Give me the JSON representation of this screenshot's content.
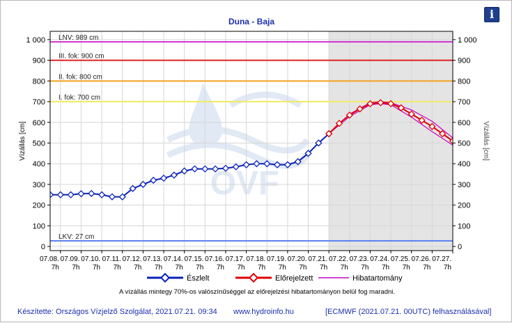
{
  "header": {
    "title": "Duna - Baja"
  },
  "info_icon": {
    "name": "info-icon",
    "glyph": "i"
  },
  "footer": {
    "note": "A vízállás mintegy 70%-os valószínűséggel az előrejelzési hibatartományon belül fog maradni.",
    "author": "Készítette: Országos Vízjelző Szolgálat, 2021.07.21. 09:34",
    "url": "www.hydroinfo.hu",
    "model": "[ECMWF (2021.07.21. 00UTC) felhasználásával]"
  },
  "watermark": "OVF",
  "colors": {
    "observed": "#0a22b8",
    "forecast": "#e00000",
    "band": "#c800c8",
    "forecast_bg": "#e4e4e4",
    "lnv": "#d030d0",
    "level3": "#e02020",
    "level2": "#f4a020",
    "level1": "#f4ea60",
    "lkv": "#5f80f0",
    "footer_text": "#1a2fb0"
  },
  "chart_data": {
    "type": "line",
    "title": "Duna - Baja",
    "ylabel": "Vízállás [cm]",
    "ylabel_right": "Vízállás [cm]",
    "ylim": [
      -20,
      1040
    ],
    "yticks": [
      0,
      100,
      200,
      300,
      400,
      500,
      600,
      700,
      800,
      900,
      1000
    ],
    "ytick_labels": [
      "0",
      "100",
      "200",
      "300",
      "400",
      "500",
      "600",
      "700",
      "800",
      "900",
      "1 000"
    ],
    "x_unit": "days",
    "x_range": [
      "07.07. 19h",
      "07.27. 7h"
    ],
    "x_ticks": [
      "07.08. 7h",
      "07.09. 7h",
      "07.10. 7h",
      "07.11. 7h",
      "07.12. 7h",
      "07.13. 7h",
      "07.14. 7h",
      "07.15. 7h",
      "07.16. 7h",
      "07.17. 7h",
      "07.18. 7h",
      "07.19. 7h",
      "07.20. 7h",
      "07.21. 7h",
      "07.22. 7h",
      "07.23. 7h",
      "07.24. 7h",
      "07.25. 7h",
      "07.26. 7h",
      "07.27. 7h"
    ],
    "tick_date_labels": [
      "07.08.",
      "07.09.",
      "07.10.",
      "07.11.",
      "07.12.",
      "07.13.",
      "07.14.",
      "07.15.",
      "07.16.",
      "07.17.",
      "07.18.",
      "07.19.",
      "07.20.",
      "07.21.",
      "07.22.",
      "07.23.",
      "07.24.",
      "07.25.",
      "07.26.",
      "07.27."
    ],
    "tick_hour_label": "7h",
    "forecast_start": "07.21. 7h",
    "thresholds": [
      {
        "label": "LNV: 989 cm",
        "value": 989
      },
      {
        "label": "III. fok: 900 cm",
        "value": 900
      },
      {
        "label": "II. fok: 800 cm",
        "value": 800
      },
      {
        "label": "I. fok: 700 cm",
        "value": 700
      },
      {
        "label": "LKV: 27 cm",
        "value": 27
      }
    ],
    "legend": [
      "Észlelt",
      "Előrejelzett",
      "Hibatartomány"
    ],
    "legend_position": "bottom",
    "series": [
      {
        "name": "Észlelt",
        "x": [
          -0.5,
          0.0,
          0.5,
          1.0,
          1.5,
          2.0,
          2.5,
          3.0,
          3.5,
          4.0,
          4.5,
          5.0,
          5.5,
          6.0,
          6.5,
          7.0,
          7.5,
          8.0,
          8.5,
          9.0,
          9.5,
          10.0,
          10.5,
          11.0,
          11.5,
          12.0,
          12.5,
          13.0
        ],
        "y": [
          250,
          250,
          250,
          255,
          256,
          250,
          240,
          240,
          280,
          300,
          320,
          330,
          345,
          365,
          375,
          375,
          375,
          378,
          385,
          395,
          400,
          400,
          395,
          395,
          410,
          450,
          500,
          545
        ]
      },
      {
        "name": "Előrejelzett",
        "x": [
          13.0,
          13.5,
          14.0,
          14.5,
          15.0,
          15.5,
          16.0,
          16.5,
          17.0,
          17.5,
          18.0,
          18.5,
          19.0
        ],
        "y": [
          545,
          595,
          635,
          665,
          690,
          695,
          690,
          670,
          640,
          610,
          580,
          545,
          510
        ]
      },
      {
        "name": "Hibatartomány",
        "x": [
          13.0,
          14.0,
          15.0,
          15.5,
          16.0,
          17.0,
          18.0,
          19.0
        ],
        "upper": [
          545,
          640,
          695,
          700,
          695,
          660,
          605,
          525
        ],
        "lower": [
          545,
          628,
          685,
          690,
          685,
          625,
          555,
          490
        ]
      }
    ]
  }
}
